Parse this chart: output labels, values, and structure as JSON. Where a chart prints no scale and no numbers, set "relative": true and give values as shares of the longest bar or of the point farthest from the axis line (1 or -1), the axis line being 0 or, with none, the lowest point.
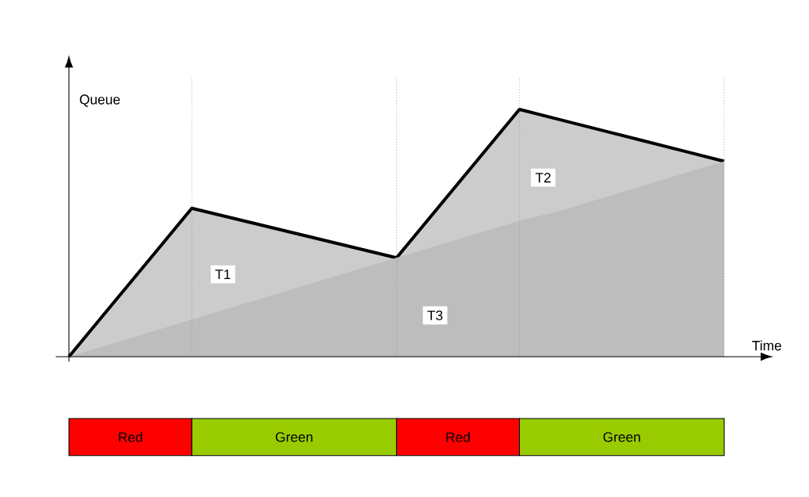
{
  "chart_data": {
    "type": "line",
    "relative": true,
    "xlabel": "Time",
    "ylabel": "Queue",
    "grid": "x",
    "categories": [
      null,
      null,
      null,
      null,
      null,
      null,
      null,
      null,
      null,
      null,
      null,
      null,
      null,
      null,
      null,
      null,
      null
    ],
    "series": [
      {
        "color": "#000000",
        "values": [
          0,
          0.2,
          0.4,
          0.6,
          0.56,
          0.52,
          0.48,
          0.44,
          0.4,
          0.6,
          0.8,
          1,
          0.958,
          0.916,
          0.874,
          0.832,
          0.79
        ]
      },
      {
        "type": "area",
        "color": "#bdbdbd",
        "values": [
          0,
          0.05,
          0.1,
          0.15,
          0.2,
          0.25,
          0.3,
          0.35,
          0.4,
          0.45,
          0.5,
          0.55,
          0.59,
          0.64,
          0.69,
          0.74,
          0.79
        ]
      }
    ],
    "annotations": [
      "T1",
      "T2",
      "T3",
      "Red",
      "Green",
      "Red",
      "Green"
    ]
  }
}
